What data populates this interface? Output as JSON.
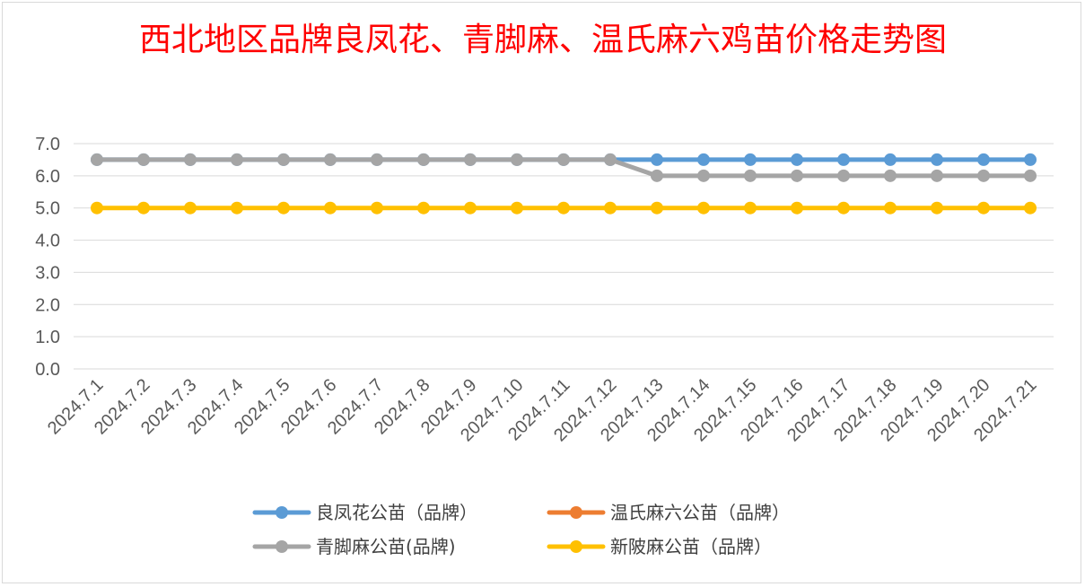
{
  "chart_data": {
    "type": "line",
    "title": "西北地区品牌良凤花、青脚麻、温氏麻六鸡苗价格走势图",
    "xlabel": "",
    "ylabel": "",
    "ylim": [
      0,
      7
    ],
    "yticks": [
      "0.0",
      "1.0",
      "2.0",
      "3.0",
      "4.0",
      "5.0",
      "6.0",
      "7.0"
    ],
    "grid": true,
    "legend_position": "bottom",
    "x": [
      "2024.7.1",
      "2024.7.2",
      "2024.7.3",
      "2024.7.4",
      "2024.7.5",
      "2024.7.6",
      "2024.7.7",
      "2024.7.8",
      "2024.7.9",
      "2024.7.10",
      "2024.7.11",
      "2024.7.12",
      "2024.7.13",
      "2024.7.14",
      "2024.7.15",
      "2024.7.16",
      "2024.7.17",
      "2024.7.18",
      "2024.7.19",
      "2024.7.20",
      "2024.7.21"
    ],
    "series": [
      {
        "name": "良凤花公苗（品牌）",
        "color": "#5b9bd5",
        "values": [
          6.5,
          6.5,
          6.5,
          6.5,
          6.5,
          6.5,
          6.5,
          6.5,
          6.5,
          6.5,
          6.5,
          6.5,
          6.5,
          6.5,
          6.5,
          6.5,
          6.5,
          6.5,
          6.5,
          6.5,
          6.5
        ]
      },
      {
        "name": "温氏麻六公苗（品牌）",
        "color": "#ed7d31",
        "values": [
          null,
          null,
          null,
          null,
          null,
          null,
          null,
          null,
          null,
          null,
          null,
          null,
          null,
          null,
          null,
          null,
          null,
          null,
          null,
          null,
          null
        ]
      },
      {
        "name": "青脚麻公苗(品牌)",
        "color": "#a5a5a5",
        "values": [
          6.5,
          6.5,
          6.5,
          6.5,
          6.5,
          6.5,
          6.5,
          6.5,
          6.5,
          6.5,
          6.5,
          6.5,
          6.0,
          6.0,
          6.0,
          6.0,
          6.0,
          6.0,
          6.0,
          6.0,
          6.0
        ]
      },
      {
        "name": "新陂麻公苗（品牌）",
        "color": "#ffc000",
        "values": [
          5.0,
          5.0,
          5.0,
          5.0,
          5.0,
          5.0,
          5.0,
          5.0,
          5.0,
          5.0,
          5.0,
          5.0,
          5.0,
          5.0,
          5.0,
          5.0,
          5.0,
          5.0,
          5.0,
          5.0,
          5.0
        ]
      }
    ],
    "legend_order": [
      0,
      1,
      2,
      3
    ]
  }
}
